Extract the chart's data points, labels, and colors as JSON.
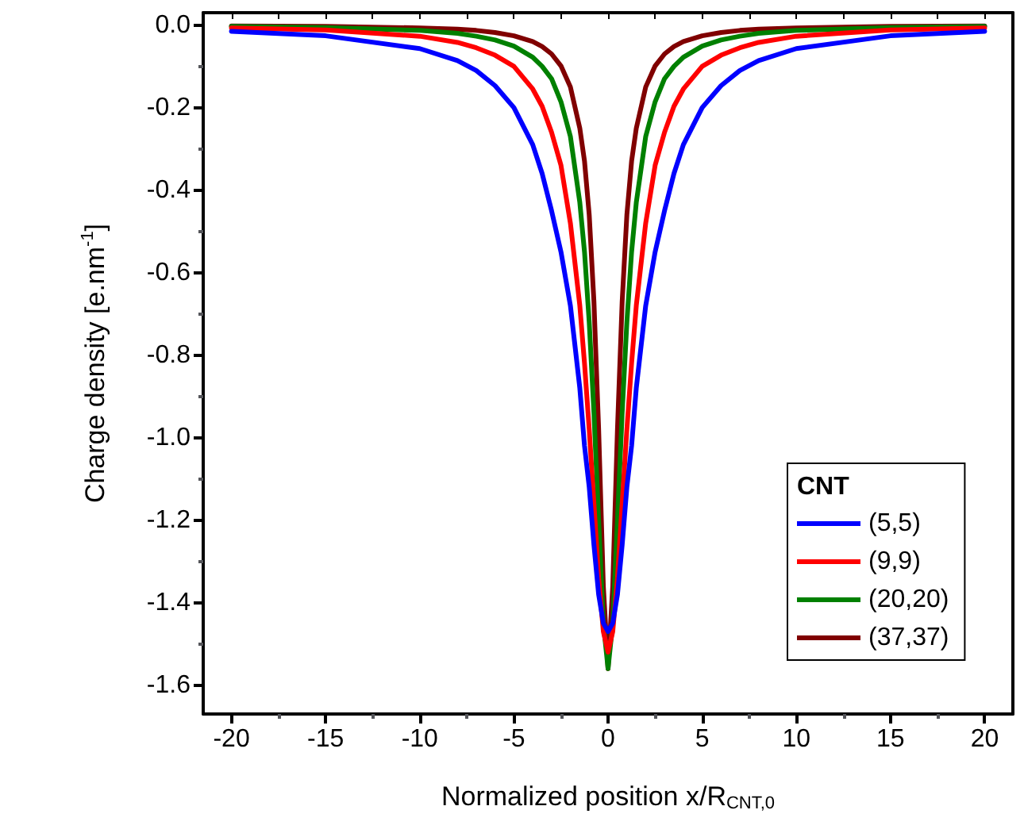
{
  "chart_data": {
    "type": "line",
    "xlabel": "Normalized position x/R$_{CNT,0}$",
    "ylabel": "Charge density [e.nm$^{-1}$]",
    "legend_title": "CNT",
    "legend": "bottom right",
    "grid": false,
    "marker": "none",
    "line_style": "solid",
    "x": [
      -20,
      -15,
      -10,
      -8,
      -7,
      -6,
      -5,
      -4,
      -3.5,
      -3,
      -2.5,
      -2,
      -1.5,
      -1.25,
      -1,
      -0.75,
      -0.5,
      -0.25,
      0,
      0.25,
      0.5,
      0.75,
      1,
      1.25,
      1.5,
      2,
      2.5,
      3,
      3.5,
      4,
      5,
      6,
      7,
      8,
      10,
      15,
      20
    ],
    "xlim": [
      -21.5,
      21.5
    ],
    "xticks": [
      -20,
      -15,
      -10,
      -5,
      0,
      5,
      10,
      15,
      20
    ],
    "ylim": [
      -1.67,
      0.03
    ],
    "yticks": [
      {
        "value": 0,
        "label": "0.0"
      },
      {
        "value": -0.2,
        "label": "-0.2"
      },
      {
        "value": -0.4,
        "label": "-0.4"
      },
      {
        "value": -0.6,
        "label": "-0.6"
      },
      {
        "value": -0.8,
        "label": "-0.8"
      },
      {
        "value": -1.0,
        "label": "-1.0"
      },
      {
        "value": -1.2,
        "label": "-1.2"
      },
      {
        "value": -1.4,
        "label": "-1.4"
      },
      {
        "value": -1.6,
        "label": "-1.6"
      }
    ],
    "series": [
      {
        "name": "(5,5)",
        "color": "#0000ff",
        "values": [
          -0.015,
          -0.026,
          -0.057,
          -0.086,
          -0.11,
          -0.147,
          -0.2,
          -0.29,
          -0.36,
          -0.45,
          -0.55,
          -0.68,
          -0.88,
          -1.02,
          -1.12,
          -1.26,
          -1.38,
          -1.45,
          -1.47,
          -1.45,
          -1.38,
          -1.26,
          -1.12,
          -1.02,
          -0.88,
          -0.68,
          -0.55,
          -0.45,
          -0.36,
          -0.29,
          -0.2,
          -0.147,
          -0.11,
          -0.086,
          -0.057,
          -0.026,
          -0.015
        ]
      },
      {
        "name": "(9,9)",
        "color": "#ff0000",
        "values": [
          -0.007,
          -0.012,
          -0.027,
          -0.042,
          -0.055,
          -0.073,
          -0.1,
          -0.155,
          -0.197,
          -0.26,
          -0.34,
          -0.48,
          -0.68,
          -0.82,
          -0.98,
          -1.16,
          -1.34,
          -1.47,
          -1.52,
          -1.47,
          -1.34,
          -1.16,
          -0.98,
          -0.82,
          -0.68,
          -0.48,
          -0.34,
          -0.26,
          -0.197,
          -0.155,
          -0.1,
          -0.073,
          -0.055,
          -0.042,
          -0.027,
          -0.012,
          -0.007
        ]
      },
      {
        "name": "(20,20)",
        "color": "#008000",
        "values": [
          -0.003,
          -0.006,
          -0.013,
          -0.02,
          -0.027,
          -0.036,
          -0.051,
          -0.078,
          -0.1,
          -0.13,
          -0.186,
          -0.27,
          -0.43,
          -0.55,
          -0.72,
          -0.94,
          -1.2,
          -1.45,
          -1.56,
          -1.45,
          -1.2,
          -0.94,
          -0.72,
          -0.55,
          -0.43,
          -0.27,
          -0.186,
          -0.13,
          -0.1,
          -0.078,
          -0.051,
          -0.036,
          -0.027,
          -0.02,
          -0.013,
          -0.006,
          -0.003
        ]
      },
      {
        "name": "(37,37)",
        "color": "#800000",
        "values": [
          -0.002,
          -0.003,
          -0.007,
          -0.01,
          -0.013,
          -0.018,
          -0.026,
          -0.04,
          -0.052,
          -0.07,
          -0.099,
          -0.15,
          -0.25,
          -0.33,
          -0.46,
          -0.67,
          -0.98,
          -1.36,
          -1.56,
          -1.36,
          -0.98,
          -0.67,
          -0.46,
          -0.33,
          -0.25,
          -0.15,
          -0.099,
          -0.07,
          -0.052,
          -0.04,
          -0.026,
          -0.018,
          -0.013,
          -0.01,
          -0.007,
          -0.003,
          -0.002
        ]
      }
    ]
  }
}
